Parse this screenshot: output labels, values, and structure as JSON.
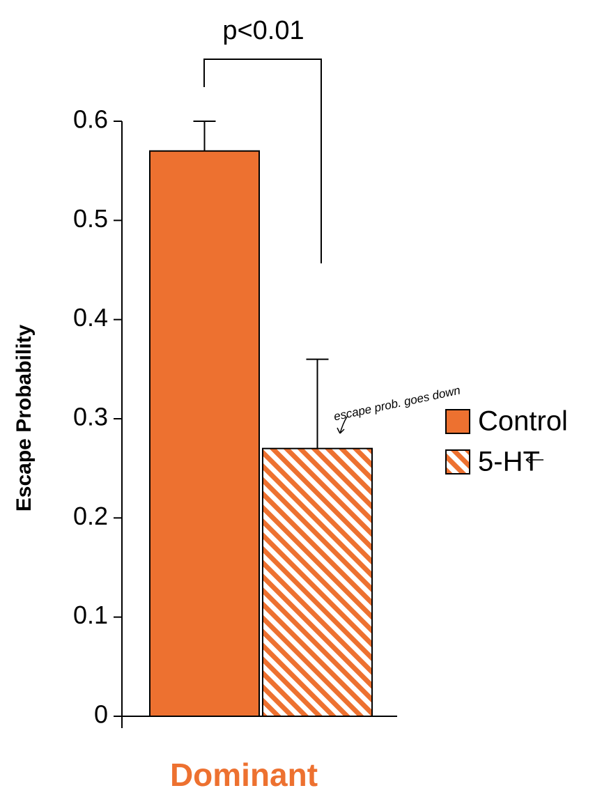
{
  "chart_data": {
    "type": "bar",
    "x_label": "Dominant",
    "y_label": "Escape Probability",
    "annotations": [
      "p<0.01",
      "escape prob. goes down"
    ],
    "series": [
      {
        "name": "Control",
        "color": "#ed7130",
        "pattern": "solid",
        "values": [
          0.57
        ],
        "errors": [
          0.03
        ]
      },
      {
        "name": "5-HT",
        "color": "#ed7130",
        "pattern": "hatch",
        "values": [
          0.27
        ],
        "errors": [
          0.09
        ]
      }
    ],
    "ylim": [
      0,
      0.6
    ],
    "yticks": [
      0,
      0.1,
      0.2,
      0.3,
      0.4,
      0.5,
      0.6
    ],
    "legend": "right"
  }
}
